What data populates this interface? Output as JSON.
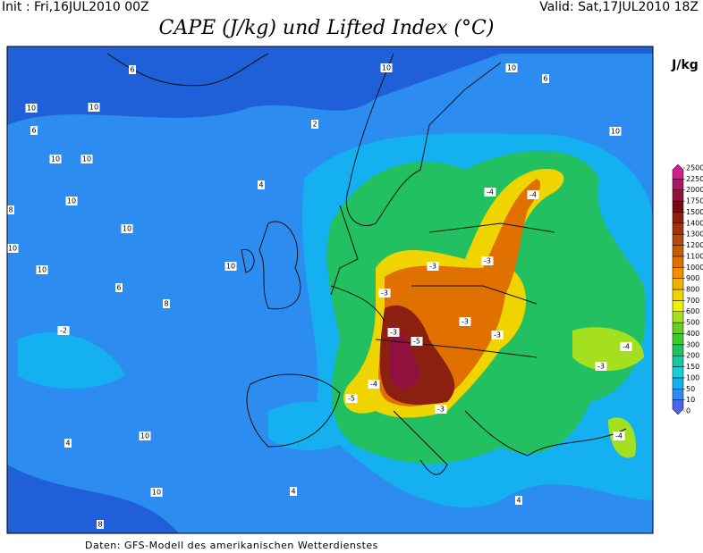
{
  "header": {
    "init": "Init : Fri,16JUL2010 00Z",
    "valid": "Valid: Sat,17JUL2010 18Z",
    "title": "CAPE (J/kg) und Lifted Index (°C)"
  },
  "colorbar": {
    "unit": "J/kg",
    "ticks": [
      0,
      10,
      50,
      100,
      150,
      200,
      300,
      400,
      500,
      600,
      700,
      800,
      900,
      1000,
      1100,
      1200,
      1300,
      1400,
      1500,
      1750,
      2000,
      2250,
      2500
    ],
    "colors": [
      "#4a66e6",
      "#2d8cf0",
      "#14b0f0",
      "#14d0dc",
      "#18c8a0",
      "#22c060",
      "#40c830",
      "#66d020",
      "#a4e020",
      "#f0f000",
      "#f0d400",
      "#f0b400",
      "#f09000",
      "#e07000",
      "#c85c00",
      "#b44810",
      "#a03410",
      "#8c2010",
      "#780c0c",
      "#92103e",
      "#b01466",
      "#d21e8c"
    ]
  },
  "map": {
    "labels": [
      "6",
      "10",
      "10",
      "6",
      "10",
      "10",
      "10",
      "8",
      "10",
      "10",
      "10",
      "6",
      "8",
      "-2",
      "10",
      "4",
      "2",
      "10",
      "10",
      "6",
      "10",
      "-4",
      "-4",
      "-3",
      "-3",
      "-3",
      "-3",
      "-3",
      "-5",
      "-3",
      "-4",
      "-5",
      "-3",
      "-4",
      "-3",
      "-4",
      "4",
      "10",
      "10",
      "8",
      "4",
      "4"
    ]
  },
  "footer": "Daten: GFS-Modell des amerikanischen Wetterdienstes"
}
